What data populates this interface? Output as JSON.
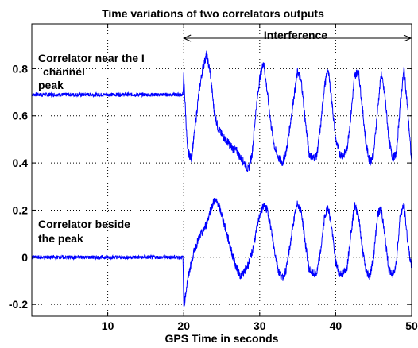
{
  "chart_data": {
    "type": "line",
    "title": "Time variations of two correlators outputs",
    "xlabel": "GPS Time in seconds",
    "ylabel": "",
    "xlim": [
      0,
      50
    ],
    "ylim": [
      -0.25,
      0.99
    ],
    "xticks": [
      10,
      20,
      30,
      40,
      50
    ],
    "yticks": [
      -0.2,
      0,
      0.2,
      0.4,
      0.6,
      0.8
    ],
    "ytick_labels": [
      "-0.2",
      "0",
      "0.2",
      "0.4",
      "0.6",
      "0.8"
    ],
    "grid": true,
    "line_color": "#0000ff",
    "annotations": {
      "interference_label": "Interference",
      "interference_range": [
        20,
        50
      ],
      "series1_label_lines": [
        "Correlator near the I",
        "channel",
        "peak"
      ],
      "series2_label_lines": [
        "Correlator beside",
        "the peak"
      ]
    },
    "series": [
      {
        "x": [
          0,
          19.9,
          20.0,
          20.5,
          21.0,
          21.5,
          22.0,
          22.5,
          23.0,
          23.5,
          24.0,
          24.5,
          25.0,
          25.5,
          26.0,
          26.5,
          27.0,
          27.5,
          28.0,
          28.5,
          29.0,
          29.5,
          30.0,
          30.5,
          31.0,
          31.5,
          32.0,
          32.5,
          33.0,
          33.5,
          34.0,
          34.5,
          35.0,
          35.5,
          36.0,
          36.5,
          37.0,
          37.5,
          38.0,
          38.5,
          39.0,
          39.5,
          40.0,
          40.5,
          41.0,
          41.5,
          42.0,
          42.5,
          43.0,
          43.5,
          44.0,
          44.5,
          45.0,
          45.5,
          46.0,
          46.5,
          47.0,
          47.5,
          48.0,
          48.5,
          49.0,
          49.5,
          50.0
        ],
        "y": [
          0.69,
          0.69,
          0.77,
          0.45,
          0.42,
          0.55,
          0.7,
          0.8,
          0.86,
          0.78,
          0.62,
          0.55,
          0.52,
          0.5,
          0.48,
          0.46,
          0.45,
          0.42,
          0.4,
          0.37,
          0.44,
          0.62,
          0.76,
          0.83,
          0.7,
          0.56,
          0.46,
          0.42,
          0.4,
          0.45,
          0.56,
          0.68,
          0.79,
          0.74,
          0.58,
          0.44,
          0.42,
          0.43,
          0.55,
          0.72,
          0.8,
          0.66,
          0.5,
          0.44,
          0.43,
          0.46,
          0.6,
          0.77,
          0.79,
          0.64,
          0.48,
          0.4,
          0.44,
          0.62,
          0.78,
          0.68,
          0.5,
          0.42,
          0.44,
          0.65,
          0.8,
          0.62,
          0.4
        ]
      },
      {
        "x": [
          0,
          19.9,
          20.0,
          20.5,
          21.0,
          21.5,
          22.0,
          22.5,
          23.0,
          23.5,
          24.0,
          24.5,
          25.0,
          25.5,
          26.0,
          26.5,
          27.0,
          27.5,
          28.0,
          28.5,
          29.0,
          29.5,
          30.0,
          30.5,
          31.0,
          31.5,
          32.0,
          32.5,
          33.0,
          33.5,
          34.0,
          34.5,
          35.0,
          35.5,
          36.0,
          36.5,
          37.0,
          37.5,
          38.0,
          38.5,
          39.0,
          39.5,
          40.0,
          40.5,
          41.0,
          41.5,
          42.0,
          42.5,
          43.0,
          43.5,
          44.0,
          44.5,
          45.0,
          45.5,
          46.0,
          46.5,
          47.0,
          47.5,
          48.0,
          48.5,
          49.0,
          49.5,
          50.0
        ],
        "y": [
          0.0,
          0.0,
          -0.21,
          -0.1,
          -0.02,
          0.04,
          0.08,
          0.11,
          0.14,
          0.2,
          0.24,
          0.23,
          0.18,
          0.12,
          0.06,
          0.0,
          -0.05,
          -0.08,
          -0.06,
          -0.03,
          0.02,
          0.1,
          0.18,
          0.22,
          0.2,
          0.12,
          0.02,
          -0.06,
          -0.09,
          -0.05,
          0.05,
          0.16,
          0.23,
          0.19,
          0.06,
          -0.05,
          -0.07,
          -0.07,
          0.02,
          0.16,
          0.22,
          0.12,
          -0.02,
          -0.07,
          -0.07,
          -0.04,
          0.1,
          0.22,
          0.18,
          0.04,
          -0.06,
          -0.08,
          0.0,
          0.18,
          0.21,
          0.08,
          -0.05,
          -0.08,
          -0.02,
          0.18,
          0.22,
          0.06,
          -0.05
        ]
      }
    ]
  }
}
